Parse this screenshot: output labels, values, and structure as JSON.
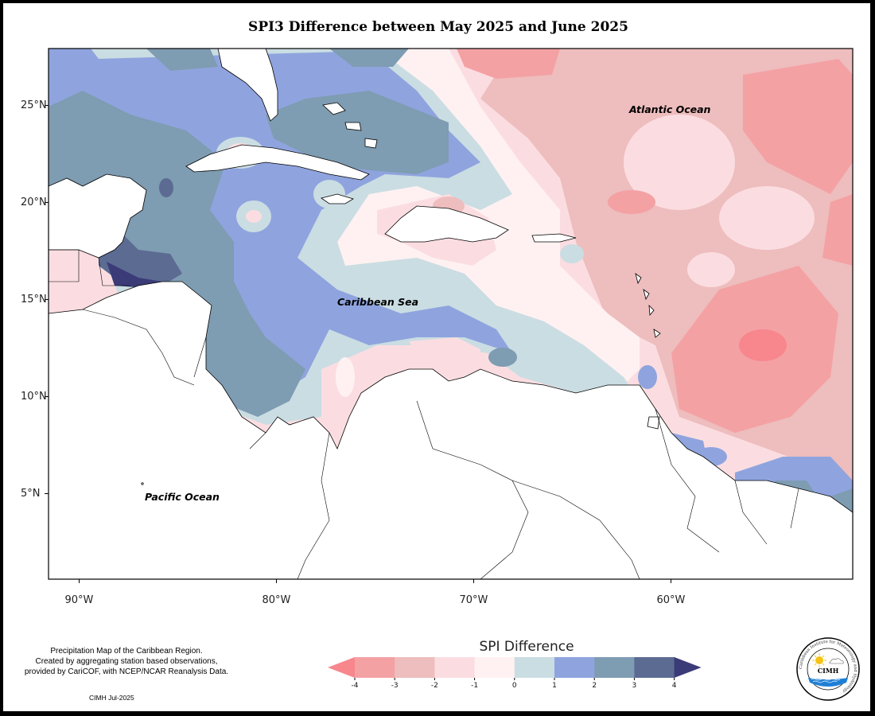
{
  "title": "SPI3 Difference between May 2025 and June 2025",
  "map": {
    "lat_labels": [
      {
        "lat": 25,
        "text": "25°N"
      },
      {
        "lat": 20,
        "text": "20°N"
      },
      {
        "lat": 15,
        "text": "15°N"
      },
      {
        "lat": 10,
        "text": "10°N"
      },
      {
        "lat": 5,
        "text": "5°N"
      }
    ],
    "lon_labels": [
      {
        "lon": -90,
        "text": "90°W"
      },
      {
        "lon": -80,
        "text": "80°W"
      },
      {
        "lon": -70,
        "text": "70°W"
      },
      {
        "lon": -60,
        "text": "60°W"
      }
    ],
    "ocean_labels": {
      "atlantic": "Atlantic Ocean",
      "caribbean": "Caribbean Sea",
      "pacific": "Pacific Ocean"
    }
  },
  "legend": {
    "title": "SPI Difference",
    "ticks": [
      "-4",
      "-3",
      "-2",
      "-1",
      "0",
      "1",
      "2",
      "3",
      "4"
    ],
    "colors": [
      "#f7868d",
      "#f4a1a4",
      "#eebdbd",
      "#fbdde1",
      "#fff1f1",
      "#cadde3",
      "#8fa4de",
      "#7e9cb2",
      "#5c6b92",
      "#3b3b78"
    ]
  },
  "credits": {
    "line1": "Precipitation Map of the Caribbean Region.",
    "line2": "Created by aggregating station based observations,",
    "line3": "provided by CariCOF, with NCEP/NCAR Reanalysis Data.",
    "date": "CIMH Jul-2025"
  },
  "logo": {
    "icon": "cimh-logo-icon",
    "abbr": "CIMH",
    "ring_text": "Caribbean Institute for Meteorology and Hydrology"
  }
}
